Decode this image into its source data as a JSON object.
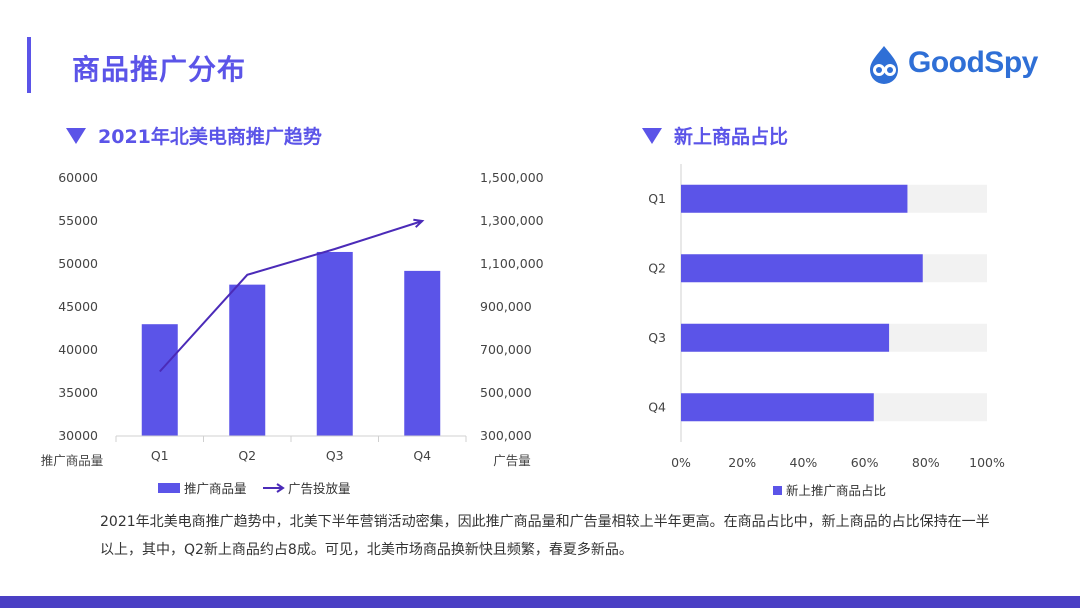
{
  "page": {
    "title": "商品推广分布",
    "brand": "GoodSpy",
    "summary": "2021年北美电商推广趋势中，北美下半年营销活动密集，因此推广商品量和广告量相较上半年更高。在商品占比中，新上商品的占比保持在一半以上，其中，Q2新上商品约占8成。可见，北美市场商品换新快且频繁，春夏多新品。"
  },
  "colors": {
    "accent": "#5b54e8",
    "line": "#4b2bb8",
    "track": "#f2f2f2",
    "bottom_bar": "#4a3fc4",
    "logo": "#2f6fd6"
  },
  "icons": {
    "logo": "goodspy-logo-icon",
    "section": "triangle-down-icon"
  },
  "chart_data": [
    {
      "type": "bar",
      "title": "2021年北美电商推广趋势",
      "categories": [
        "Q1",
        "Q2",
        "Q3",
        "Q4"
      ],
      "series": [
        {
          "name": "推广商品量",
          "type": "bar",
          "axis": "left",
          "values": [
            43000,
            47600,
            51400,
            49200
          ]
        },
        {
          "name": "广告投放量",
          "type": "line",
          "axis": "right",
          "values": [
            600000,
            1050000,
            1170000,
            1300000
          ]
        }
      ],
      "ylabel": "推广商品量",
      "y2label": "广告量",
      "ylim": [
        30000,
        60000
      ],
      "y2lim": [
        300000,
        1500000
      ],
      "yticks": [
        "30000",
        "35000",
        "40000",
        "45000",
        "50000",
        "55000",
        "60000"
      ],
      "y2ticks": [
        "300,000",
        "500,000",
        "700,000",
        "900,000",
        "1,100,000",
        "1,300,000",
        "1,500,000"
      ],
      "legend": "bottom",
      "grid": false
    },
    {
      "type": "bar",
      "orientation": "horizontal",
      "title": "新上商品占比",
      "categories": [
        "Q1",
        "Q2",
        "Q3",
        "Q4"
      ],
      "series": [
        {
          "name": "新上推广商品占比",
          "values": [
            0.74,
            0.79,
            0.68,
            0.63
          ]
        }
      ],
      "xlim": [
        0,
        1
      ],
      "xticks": [
        "0%",
        "20%",
        "40%",
        "60%",
        "80%",
        "100%"
      ],
      "legend": "bottom",
      "grid": false
    }
  ]
}
